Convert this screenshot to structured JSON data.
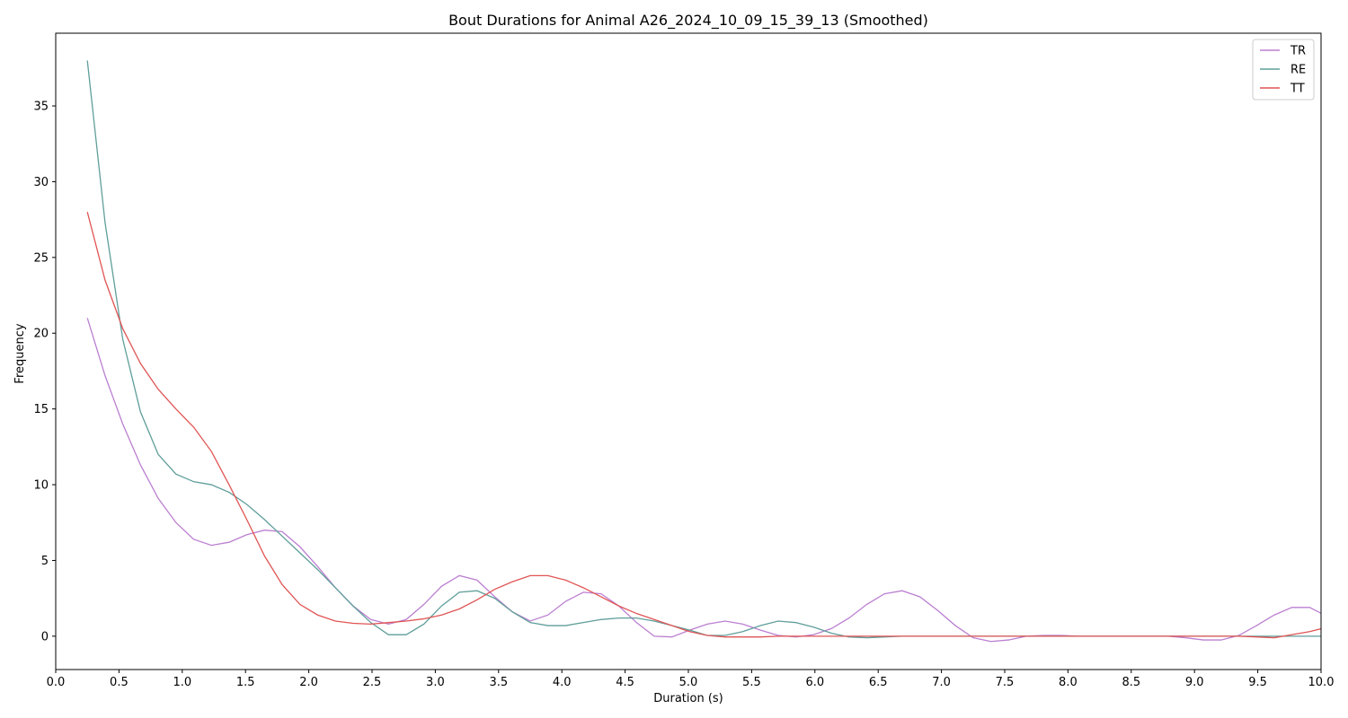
{
  "chart_data": {
    "type": "line",
    "title": "Bout Durations for Animal A26_2024_10_09_15_39_13 (Smoothed)",
    "xlabel": "Duration (s)",
    "ylabel": "Frequency",
    "xlim": [
      0,
      10
    ],
    "ylim": [
      -2.2,
      39.8
    ],
    "xticks": [
      "0.0",
      "0.5",
      "1.0",
      "1.5",
      "2.0",
      "2.5",
      "3.0",
      "3.5",
      "4.0",
      "4.5",
      "5.0",
      "5.5",
      "6.0",
      "6.5",
      "7.0",
      "7.5",
      "8.0",
      "8.5",
      "9.0",
      "9.5",
      "10.0"
    ],
    "yticks": [
      "0",
      "5",
      "10",
      "15",
      "20",
      "25",
      "30",
      "35"
    ],
    "grid": false,
    "legend_position": "top-right",
    "x": [
      0.25,
      0.39,
      0.53,
      0.67,
      0.81,
      0.95,
      1.09,
      1.23,
      1.37,
      1.51,
      1.65,
      1.79,
      1.93,
      2.07,
      2.21,
      2.35,
      2.49,
      2.63,
      2.77,
      2.91,
      3.05,
      3.19,
      3.33,
      3.47,
      3.61,
      3.75,
      3.89,
      4.03,
      4.17,
      4.31,
      4.45,
      4.59,
      4.73,
      4.87,
      5.01,
      5.15,
      5.29,
      5.43,
      5.57,
      5.71,
      5.85,
      5.99,
      6.13,
      6.27,
      6.41,
      6.55,
      6.69,
      6.83,
      6.97,
      7.11,
      7.25,
      7.39,
      7.53,
      7.67,
      7.81,
      7.95,
      8.09,
      8.23,
      8.37,
      8.51,
      8.65,
      8.79,
      8.93,
      9.07,
      9.21,
      9.35,
      9.49,
      9.63,
      9.77,
      9.91,
      10.05
    ],
    "series": [
      {
        "name": "TR",
        "color": "#bb7fd1",
        "values": [
          21.0,
          17.2,
          14.0,
          11.3,
          9.1,
          7.5,
          6.4,
          6.0,
          6.2,
          6.7,
          7.0,
          6.9,
          5.9,
          4.6,
          3.2,
          2.0,
          1.1,
          0.8,
          1.1,
          2.1,
          3.3,
          4.0,
          3.7,
          2.6,
          1.6,
          1.0,
          1.4,
          2.3,
          2.9,
          2.8,
          2.0,
          0.9,
          0.0,
          -0.05,
          0.4,
          0.8,
          1.0,
          0.8,
          0.4,
          0.05,
          -0.05,
          0.1,
          0.5,
          1.2,
          2.1,
          2.8,
          3.0,
          2.6,
          1.7,
          0.7,
          -0.1,
          -0.35,
          -0.25,
          0.0,
          0.05,
          0.05,
          0.0,
          0.0,
          0.0,
          0.0,
          0.0,
          0.0,
          -0.1,
          -0.25,
          -0.25,
          0.05,
          0.7,
          1.4,
          1.9,
          1.9,
          1.3
        ]
      },
      {
        "name": "RE",
        "color": "#5f9e9a",
        "values": [
          38.0,
          27.3,
          19.6,
          14.8,
          12.0,
          10.7,
          10.2,
          10.0,
          9.5,
          8.7,
          7.7,
          6.6,
          5.5,
          4.4,
          3.2,
          2.0,
          0.9,
          0.1,
          0.1,
          0.8,
          2.0,
          2.9,
          3.0,
          2.5,
          1.6,
          0.9,
          0.7,
          0.7,
          0.9,
          1.1,
          1.2,
          1.2,
          1.0,
          0.7,
          0.4,
          0.05,
          0.05,
          0.3,
          0.7,
          1.0,
          0.9,
          0.6,
          0.2,
          -0.05,
          -0.1,
          -0.05,
          0.0,
          0.0,
          0.0,
          0.0,
          0.0,
          0.0,
          0.0,
          0.0,
          0.0,
          0.0,
          0.0,
          0.0,
          0.0,
          0.0,
          0.0,
          0.0,
          0.0,
          0.0,
          0.0,
          0.0,
          0.0,
          0.0,
          0.0,
          0.0,
          0.0
        ]
      },
      {
        "name": "TT",
        "color": "#e05454",
        "values": [
          28.0,
          23.5,
          20.3,
          18.0,
          16.3,
          15.0,
          13.8,
          12.2,
          10.0,
          7.7,
          5.3,
          3.4,
          2.1,
          1.4,
          1.0,
          0.85,
          0.8,
          0.9,
          1.0,
          1.15,
          1.4,
          1.8,
          2.4,
          3.1,
          3.6,
          4.0,
          4.0,
          3.7,
          3.2,
          2.6,
          2.0,
          1.5,
          1.1,
          0.7,
          0.3,
          0.05,
          -0.05,
          -0.05,
          -0.05,
          0.0,
          0.0,
          0.0,
          0.0,
          0.0,
          0.0,
          0.0,
          0.0,
          0.0,
          0.0,
          0.0,
          0.0,
          0.0,
          0.0,
          0.0,
          0.0,
          0.0,
          0.0,
          0.0,
          0.0,
          0.0,
          0.0,
          0.0,
          0.0,
          0.0,
          0.0,
          0.0,
          -0.05,
          -0.1,
          0.1,
          0.3,
          0.6
        ]
      }
    ]
  }
}
